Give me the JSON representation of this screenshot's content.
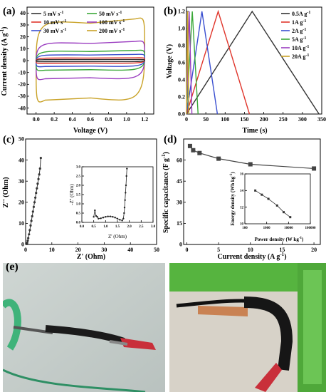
{
  "chart_data": [
    {
      "panel": "(a)",
      "type": "line",
      "xlabel": "Voltage (V)",
      "ylabel": "Current density (A g",
      "ylabel_sup": "-1",
      "ylabel_close": ")",
      "xlim": [
        -0.1,
        1.3
      ],
      "ylim": [
        -45,
        45
      ],
      "xticks": [
        "0.0",
        "0.2",
        "0.4",
        "0.6",
        "0.8",
        "1.0",
        "1.2"
      ],
      "yticks": [
        "-40",
        "-30",
        "-20",
        "-10",
        "0",
        "10",
        "20",
        "30",
        "40"
      ],
      "legend_position": "top",
      "series": [
        {
          "name": "5 mV s",
          "name_sup": "-1",
          "color": "#333333",
          "half_height": 1.0
        },
        {
          "name": "10 mV s",
          "name_sup": "-1",
          "color": "#e0352b",
          "half_height": 2.5
        },
        {
          "name": "30 mV s",
          "name_sup": "-1",
          "color": "#3a4fd0",
          "half_height": 5.5
        },
        {
          "name": "50 mV s",
          "name_sup": "-1",
          "color": "#3aa838",
          "half_height": 9
        },
        {
          "name": "100 mV s",
          "name_sup": "-1",
          "color": "#9a3cc0",
          "half_height": 17
        },
        {
          "name": "200 mV s",
          "name_sup": "-1",
          "color": "#c9a227",
          "half_height": 37
        }
      ]
    },
    {
      "panel": "(b)",
      "type": "line",
      "xlabel": "Time (s)",
      "ylabel": "Voltage (V)",
      "xlim": [
        0,
        350
      ],
      "ylim": [
        0,
        1.25
      ],
      "xticks": [
        "0",
        "50",
        "100",
        "150",
        "200",
        "250",
        "300",
        "350"
      ],
      "yticks": [
        "0.0",
        "0.2",
        "0.4",
        "0.6",
        "0.8",
        "1.0",
        "1.2"
      ],
      "legend_position": "top-right",
      "series": [
        {
          "name": "0.5A g",
          "name_sup": "-1",
          "color": "#333333",
          "x": [
            0,
            170,
            343
          ],
          "y": [
            0,
            1.2,
            0
          ]
        },
        {
          "name": "1A g",
          "name_sup": "-1",
          "color": "#e0352b",
          "x": [
            0,
            82,
            163
          ],
          "y": [
            0,
            1.2,
            0
          ]
        },
        {
          "name": "2A g",
          "name_sup": "-1",
          "color": "#3a4fd0",
          "x": [
            0,
            40,
            80
          ],
          "y": [
            0,
            1.2,
            0
          ]
        },
        {
          "name": "5A g",
          "name_sup": "-1",
          "color": "#3aa838",
          "x": [
            0,
            15,
            30
          ],
          "y": [
            0,
            1.2,
            0
          ]
        },
        {
          "name": "10A g",
          "name_sup": "-1",
          "color": "#9a3cc0",
          "x": [
            0,
            7,
            14
          ],
          "y": [
            0,
            1.2,
            0
          ]
        },
        {
          "name": "20A g",
          "name_sup": "-1",
          "color": "#c9a227",
          "x": [
            0,
            3,
            6
          ],
          "y": [
            0,
            1.2,
            0
          ]
        }
      ]
    },
    {
      "panel": "(c)",
      "type": "scatter",
      "xlabel": "Z' (Ohm)",
      "ylabel": "Z'' (Ohm)",
      "xlim": [
        0,
        50
      ],
      "ylim": [
        0,
        50
      ],
      "xticks": [
        "0",
        "10",
        "20",
        "30",
        "40",
        "50"
      ],
      "yticks": [
        "0",
        "10",
        "20",
        "30",
        "40",
        "50"
      ],
      "series": [
        {
          "x": [
            0.5,
            0.6,
            0.8,
            1.0,
            1.3,
            1.6,
            1.9,
            2.2,
            2.5,
            2.8,
            3.1,
            3.4,
            3.7,
            4.0,
            4.3,
            4.6,
            4.9,
            5.2,
            5.5,
            5.8
          ],
          "y": [
            0.2,
            0.8,
            1.8,
            3,
            4.8,
            6.8,
            9,
            11.2,
            13.4,
            15.6,
            17.8,
            20,
            22.2,
            24.4,
            26.6,
            28.8,
            31,
            33.2,
            36,
            41
          ]
        }
      ],
      "inset": {
        "xlabel": "Z' (Ohm)",
        "ylabel": "-Z'' (Ohm)",
        "xlim": [
          0,
          3.0
        ],
        "ylim": [
          0,
          3.0
        ],
        "xticks": [
          "0.0",
          "0.5",
          "1.0",
          "1.5",
          "2.0",
          "2.5",
          "3.0"
        ],
        "yticks": [
          "0.0",
          "0.5",
          "1.0",
          "1.5",
          "2.0",
          "2.5",
          "3.0"
        ],
        "series": [
          {
            "x": [
              0.5,
              0.55,
              0.6,
              0.65,
              0.7,
              0.8,
              0.9,
              1.0,
              1.1,
              1.2,
              1.3,
              1.4,
              1.5,
              1.6,
              1.7,
              1.75,
              1.78,
              1.8,
              1.82,
              1.84,
              1.86,
              1.88,
              1.9
            ],
            "y": [
              0.3,
              0.65,
              0.35,
              0.3,
              0.2,
              0.22,
              0.26,
              0.3,
              0.32,
              0.32,
              0.3,
              0.26,
              0.2,
              0.14,
              0.1,
              0.2,
              0.5,
              0.8,
              1.2,
              1.6,
              2.0,
              2.5,
              2.9
            ]
          }
        ]
      }
    },
    {
      "panel": "(d)",
      "type": "line",
      "xlabel": "Current density (A g",
      "xlabel_sup": "-1",
      "xlabel_close": ")",
      "ylabel": "Specific capacitance (F g",
      "ylabel_sup": "-1",
      "ylabel_close": ")",
      "xlim": [
        -0.5,
        21
      ],
      "ylim": [
        0,
        75
      ],
      "xticks": [
        "0",
        "5",
        "10",
        "15",
        "20"
      ],
      "yticks": [
        "0",
        "15",
        "30",
        "45",
        "60"
      ],
      "series": [
        {
          "x": [
            0.5,
            1,
            2,
            5,
            10,
            20
          ],
          "y": [
            70,
            67,
            65,
            61,
            57,
            54
          ],
          "color": "#444444"
        }
      ],
      "inset": {
        "xlabel": "Power density (W kg",
        "xlabel_sup": "-1",
        "xlabel_close": ")",
        "ylabel": "Energy density (Wh kg",
        "ylabel_sup": "-1",
        "ylabel_close": ")",
        "xlog": true,
        "xlim": [
          100,
          100000
        ],
        "ylim": [
          10,
          16
        ],
        "xticks": [
          "100",
          "1000",
          "10000",
          "100000"
        ],
        "yticks": [
          "10",
          "12",
          "14",
          "16"
        ],
        "series": [
          {
            "x": [
              300,
              600,
              1200,
              3000,
              6000,
              12000
            ],
            "y": [
              14.0,
              13.5,
              13.0,
              12.2,
              11.4,
              10.8
            ]
          }
        ]
      }
    }
  ],
  "panel_e_label": "(e)"
}
